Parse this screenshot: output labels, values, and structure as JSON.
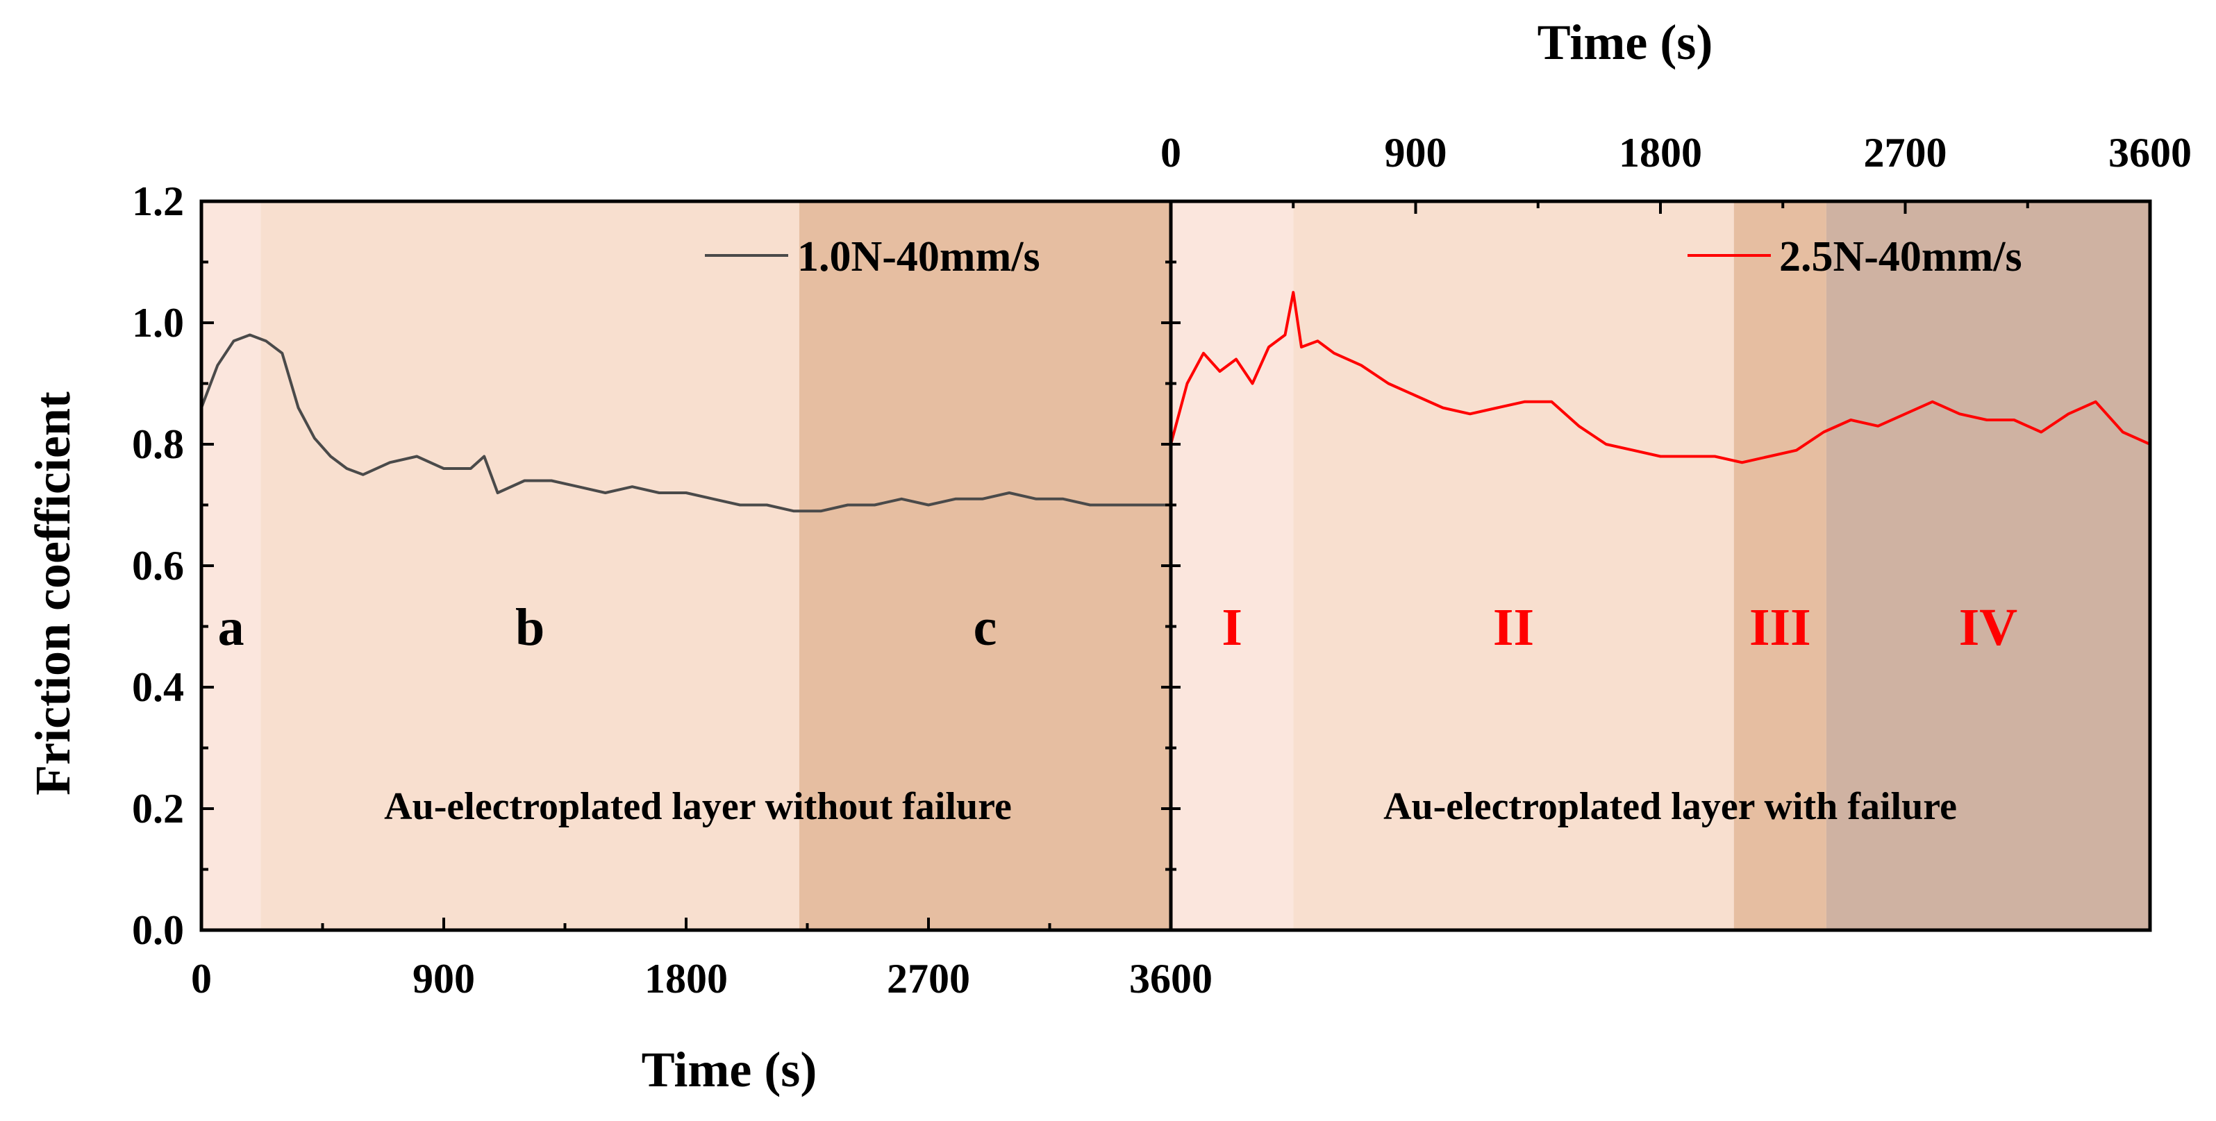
{
  "chart_data": [
    {
      "type": "line",
      "panel": "left",
      "xlabel": "Time (s)",
      "ylabel": "Friction coefficient",
      "xlim": [
        0,
        3600
      ],
      "ylim": [
        0.0,
        1.2
      ],
      "xticks": [
        "0",
        "900",
        "1800",
        "2700",
        "3600"
      ],
      "yticks": [
        "0.0",
        "0.2",
        "0.4",
        "0.6",
        "0.8",
        "1.0",
        "1.2"
      ],
      "series": [
        {
          "name": "1.0N-40mm/s",
          "color": "#4a4a4a",
          "x": [
            0,
            60,
            120,
            180,
            240,
            300,
            360,
            420,
            480,
            540,
            600,
            700,
            800,
            900,
            1000,
            1050,
            1100,
            1200,
            1300,
            1400,
            1500,
            1600,
            1700,
            1800,
            1900,
            2000,
            2100,
            2200,
            2300,
            2400,
            2500,
            2600,
            2700,
            2800,
            2900,
            3000,
            3100,
            3200,
            3300,
            3400,
            3500,
            3600
          ],
          "y": [
            0.86,
            0.93,
            0.97,
            0.98,
            0.97,
            0.95,
            0.86,
            0.81,
            0.78,
            0.76,
            0.75,
            0.77,
            0.78,
            0.76,
            0.76,
            0.78,
            0.72,
            0.74,
            0.74,
            0.73,
            0.72,
            0.73,
            0.72,
            0.72,
            0.71,
            0.7,
            0.7,
            0.69,
            0.69,
            0.7,
            0.7,
            0.71,
            0.7,
            0.71,
            0.71,
            0.72,
            0.71,
            0.71,
            0.7,
            0.7,
            0.7,
            0.7
          ]
        }
      ],
      "regions": [
        {
          "label": "a",
          "x_start": 0,
          "x_end": 220,
          "color": "#fbe6dd"
        },
        {
          "label": "b",
          "x_start": 220,
          "x_end": 2220,
          "color": "#f8dfcf"
        },
        {
          "label": "c",
          "x_start": 2220,
          "x_end": 3600,
          "color": "#e6bea1"
        }
      ],
      "annotation": "Au-electroplated layer without failure"
    },
    {
      "type": "line",
      "panel": "right",
      "xlabel": "Time (s)",
      "xlim": [
        0,
        3600
      ],
      "ylim": [
        0.0,
        1.2
      ],
      "xticks": [
        "0",
        "900",
        "1800",
        "2700",
        "3600"
      ],
      "series": [
        {
          "name": "2.5N-40mm/s",
          "color": "#ff0000",
          "x": [
            0,
            60,
            120,
            180,
            240,
            300,
            360,
            420,
            450,
            480,
            540,
            600,
            700,
            800,
            900,
            1000,
            1100,
            1200,
            1300,
            1400,
            1500,
            1600,
            1700,
            1800,
            1900,
            2000,
            2100,
            2200,
            2300,
            2400,
            2500,
            2600,
            2700,
            2800,
            2900,
            3000,
            3100,
            3200,
            3300,
            3400,
            3500,
            3600
          ],
          "y": [
            0.8,
            0.9,
            0.95,
            0.92,
            0.94,
            0.9,
            0.96,
            0.98,
            1.05,
            0.96,
            0.97,
            0.95,
            0.93,
            0.9,
            0.88,
            0.86,
            0.85,
            0.86,
            0.87,
            0.87,
            0.83,
            0.8,
            0.79,
            0.78,
            0.78,
            0.78,
            0.77,
            0.78,
            0.79,
            0.82,
            0.84,
            0.83,
            0.85,
            0.87,
            0.85,
            0.84,
            0.84,
            0.82,
            0.85,
            0.87,
            0.82,
            0.8
          ]
        }
      ],
      "regions": [
        {
          "label": "I",
          "x_start": 0,
          "x_end": 450,
          "color": "#fbe6dd"
        },
        {
          "label": "II",
          "x_start": 450,
          "x_end": 2070,
          "color": "#f8dfcf"
        },
        {
          "label": "III",
          "x_start": 2070,
          "x_end": 2410,
          "color": "#e6bea1"
        },
        {
          "label": "IV",
          "x_start": 2410,
          "x_end": 3600,
          "color": "#cfb2a2"
        }
      ],
      "annotation": "Au-electroplated layer with failure"
    }
  ]
}
